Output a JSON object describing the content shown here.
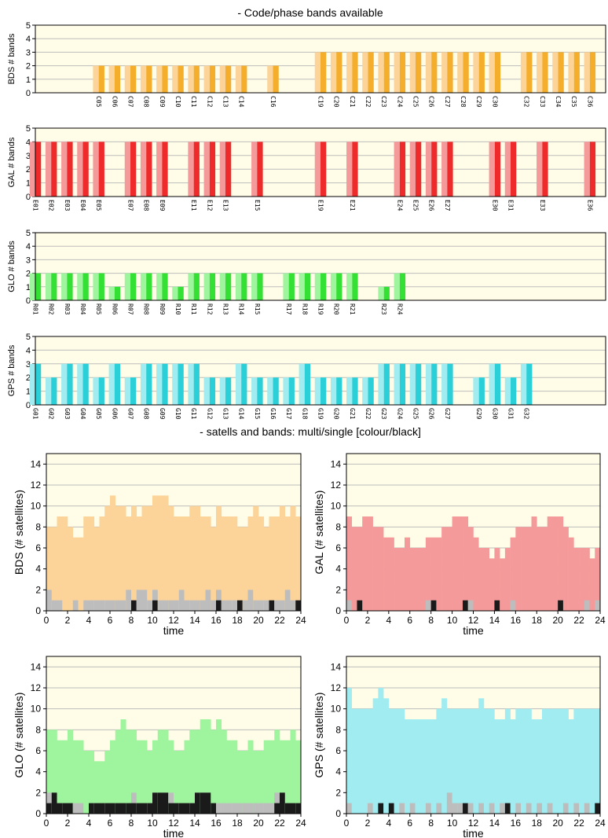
{
  "titles": {
    "top": "- Code/phase bands available",
    "bottom": "- satells and bands: multi/single [colour/black]"
  },
  "chart_data": [
    {
      "type": "bar",
      "ylabel": "BDS # bands",
      "ylim": [
        0,
        5
      ],
      "yticks": [
        0,
        1,
        2,
        3,
        4,
        5
      ],
      "color_light": "#fcd49a",
      "color_dark": "#f5ae2c",
      "slots": 36,
      "categories": [
        "C05",
        "C06",
        "C07",
        "C08",
        "C09",
        "C10",
        "C11",
        "C12",
        "C13",
        "C14",
        "C16",
        "C19",
        "C20",
        "C21",
        "C22",
        "C23",
        "C24",
        "C25",
        "C26",
        "C27",
        "C28",
        "C29",
        "C30",
        "C32",
        "C33",
        "C34",
        "C35",
        "C36"
      ],
      "values": [
        2,
        2,
        2,
        2,
        2,
        2,
        2,
        2,
        2,
        2,
        2,
        3,
        3,
        3,
        3,
        3,
        3,
        3,
        3,
        3,
        3,
        3,
        3,
        3,
        3,
        3,
        3,
        3
      ]
    },
    {
      "type": "bar",
      "ylabel": "GAL # bands",
      "ylim": [
        0,
        5
      ],
      "yticks": [
        0,
        1,
        2,
        3,
        4,
        5
      ],
      "color_light": "#f59a9a",
      "color_dark": "#ef2a2a",
      "slots": 36,
      "categories": [
        "E01",
        "E02",
        "E03",
        "E04",
        "E05",
        "E07",
        "E08",
        "E09",
        "E11",
        "E12",
        "E13",
        "E15",
        "E19",
        "E21",
        "E24",
        "E25",
        "E26",
        "E27",
        "E30",
        "E31",
        "E33",
        "E36"
      ],
      "values": [
        4,
        4,
        4,
        4,
        4,
        4,
        4,
        4,
        4,
        4,
        4,
        4,
        4,
        4,
        4,
        4,
        4,
        4,
        4,
        4,
        4,
        4
      ]
    },
    {
      "type": "bar",
      "ylabel": "GLO # bands",
      "ylim": [
        0,
        5
      ],
      "yticks": [
        0,
        1,
        2,
        3,
        4,
        5
      ],
      "color_light": "#9ef59e",
      "color_dark": "#33e033",
      "slots": 36,
      "categories": [
        "R01",
        "R02",
        "R03",
        "R04",
        "R05",
        "R06",
        "R07",
        "R08",
        "R09",
        "R10",
        "R11",
        "R12",
        "R13",
        "R14",
        "R15",
        "R17",
        "R18",
        "R19",
        "R20",
        "R21",
        "R23",
        "R24"
      ],
      "values": [
        2,
        2,
        2,
        2,
        2,
        1,
        2,
        2,
        2,
        1,
        2,
        2,
        2,
        2,
        2,
        2,
        2,
        2,
        2,
        2,
        1,
        2
      ]
    },
    {
      "type": "bar",
      "ylabel": "GPS # bands",
      "ylim": [
        0,
        5
      ],
      "yticks": [
        0,
        1,
        2,
        3,
        4,
        5
      ],
      "color_light": "#a0ecf0",
      "color_dark": "#2acfd8",
      "slots": 36,
      "categories": [
        "G01",
        "G02",
        "G03",
        "G04",
        "G05",
        "G06",
        "G07",
        "G08",
        "G09",
        "G10",
        "G11",
        "G12",
        "G13",
        "G14",
        "G15",
        "G16",
        "G17",
        "G18",
        "G19",
        "G20",
        "G21",
        "G22",
        "G23",
        "G24",
        "G25",
        "G26",
        "G27",
        "G29",
        "G30",
        "G31",
        "G32"
      ],
      "values": [
        3,
        2,
        3,
        3,
        2,
        3,
        2,
        3,
        3,
        3,
        3,
        2,
        2,
        3,
        2,
        2,
        2,
        3,
        2,
        2,
        2,
        2,
        3,
        3,
        3,
        3,
        3,
        2,
        3,
        2,
        3
      ]
    },
    {
      "type": "area",
      "ylabel": "BDS (# satellites)",
      "xlabel": "time",
      "xlim": [
        0,
        24
      ],
      "ylim": [
        0,
        15
      ],
      "xticks": [
        0,
        2,
        4,
        6,
        8,
        10,
        12,
        14,
        16,
        18,
        20,
        22,
        24
      ],
      "yticks": [
        0,
        2,
        4,
        6,
        8,
        10,
        12,
        14
      ],
      "fill_color": "#fcd49a",
      "x": [
        0,
        0.5,
        1,
        1.5,
        2,
        2.5,
        3,
        3.5,
        4,
        4.5,
        5,
        5.5,
        6,
        6.5,
        7,
        7.5,
        8,
        8.5,
        9,
        9.5,
        10,
        10.5,
        11,
        11.5,
        12,
        12.5,
        13,
        13.5,
        14,
        14.5,
        15,
        15.5,
        16,
        16.5,
        17,
        17.5,
        18,
        18.5,
        19,
        19.5,
        20,
        20.5,
        21,
        21.5,
        22,
        22.5,
        23,
        23.5
      ],
      "total": [
        8,
        8,
        9,
        9,
        8,
        7,
        7,
        9,
        9,
        8,
        9,
        10,
        11,
        10,
        10,
        9,
        10,
        9,
        10,
        10,
        11,
        11,
        11,
        10,
        9,
        9,
        9,
        10,
        10,
        9,
        9,
        8,
        10,
        9,
        9,
        9,
        8,
        8,
        9,
        10,
        9,
        8,
        9,
        9,
        10,
        9,
        10,
        9
      ],
      "single": [
        2,
        1,
        1,
        0,
        0,
        1,
        0,
        1,
        1,
        1,
        1,
        1,
        1,
        1,
        1,
        2,
        1,
        2,
        2,
        1,
        2,
        1,
        1,
        1,
        1,
        2,
        1,
        1,
        1,
        1,
        2,
        1,
        2,
        1,
        1,
        1,
        1,
        1,
        2,
        1,
        1,
        1,
        1,
        1,
        1,
        2,
        1,
        1
      ],
      "black": [
        0,
        0,
        0,
        0,
        0,
        0,
        0,
        0,
        0,
        0,
        0,
        0,
        0,
        0,
        0,
        0,
        1,
        0,
        0,
        0,
        1,
        0,
        0,
        0,
        0,
        0,
        0,
        0,
        0,
        0,
        0,
        0,
        1,
        0,
        0,
        0,
        1,
        0,
        0,
        0,
        0,
        0,
        1,
        0,
        0,
        0,
        0,
        1
      ]
    },
    {
      "type": "area",
      "ylabel": "GAL (# satellites)",
      "xlabel": "time",
      "xlim": [
        0,
        24
      ],
      "ylim": [
        0,
        15
      ],
      "xticks": [
        0,
        2,
        4,
        6,
        8,
        10,
        12,
        14,
        16,
        18,
        20,
        22,
        24
      ],
      "yticks": [
        0,
        2,
        4,
        6,
        8,
        10,
        12,
        14
      ],
      "fill_color": "#f59a9a",
      "x": [
        0,
        0.5,
        1,
        1.5,
        2,
        2.5,
        3,
        3.5,
        4,
        4.5,
        5,
        5.5,
        6,
        6.5,
        7,
        7.5,
        8,
        8.5,
        9,
        9.5,
        10,
        10.5,
        11,
        11.5,
        12,
        12.5,
        13,
        13.5,
        14,
        14.5,
        15,
        15.5,
        16,
        16.5,
        17,
        17.5,
        18,
        18.5,
        19,
        19.5,
        20,
        20.5,
        21,
        21.5,
        22,
        22.5,
        23,
        23.5
      ],
      "total": [
        9,
        8,
        8,
        9,
        9,
        8,
        8,
        7,
        7,
        6,
        6,
        7,
        6,
        6,
        6,
        7,
        7,
        7,
        8,
        8,
        9,
        9,
        9,
        8,
        7,
        6,
        6,
        5,
        6,
        5,
        6,
        7,
        8,
        8,
        8,
        9,
        8,
        8,
        9,
        9,
        9,
        8,
        7,
        6,
        6,
        6,
        5,
        6
      ],
      "single": [
        1,
        0,
        0,
        0,
        0,
        0,
        0,
        0,
        0,
        0,
        0,
        0,
        0,
        0,
        0,
        1,
        0,
        0,
        0,
        0,
        0,
        0,
        0,
        1,
        0,
        0,
        0,
        0,
        0,
        0,
        0,
        1,
        0,
        0,
        0,
        0,
        0,
        0,
        0,
        0,
        0,
        0,
        0,
        0,
        0,
        1,
        0,
        1
      ],
      "black": [
        0,
        0,
        1,
        0,
        0,
        0,
        0,
        0,
        0,
        0,
        0,
        0,
        0,
        0,
        0,
        0,
        1,
        0,
        0,
        0,
        0,
        0,
        1,
        0,
        0,
        0,
        0,
        0,
        1,
        0,
        0,
        0,
        0,
        0,
        0,
        0,
        0,
        0,
        0,
        0,
        1,
        0,
        0,
        0,
        0,
        0,
        0,
        0
      ]
    },
    {
      "type": "area",
      "ylabel": "GLO (# satellites)",
      "xlabel": "time",
      "xlim": [
        0,
        24
      ],
      "ylim": [
        0,
        15
      ],
      "xticks": [
        0,
        2,
        4,
        6,
        8,
        10,
        12,
        14,
        16,
        18,
        20,
        22,
        24
      ],
      "yticks": [
        0,
        2,
        4,
        6,
        8,
        10,
        12,
        14
      ],
      "fill_color": "#9ef59e",
      "x": [
        0,
        0.5,
        1,
        1.5,
        2,
        2.5,
        3,
        3.5,
        4,
        4.5,
        5,
        5.5,
        6,
        6.5,
        7,
        7.5,
        8,
        8.5,
        9,
        9.5,
        10,
        10.5,
        11,
        11.5,
        12,
        12.5,
        13,
        13.5,
        14,
        14.5,
        15,
        15.5,
        16,
        16.5,
        17,
        17.5,
        18,
        18.5,
        19,
        19.5,
        20,
        20.5,
        21,
        21.5,
        22,
        22.5,
        23,
        23.5
      ],
      "total": [
        8,
        8,
        7,
        7,
        8,
        7,
        7,
        6,
        6,
        5,
        5,
        6,
        7,
        8,
        9,
        8,
        8,
        7,
        7,
        6,
        7,
        8,
        8,
        7,
        6,
        6,
        7,
        8,
        8,
        9,
        9,
        8,
        9,
        8,
        7,
        7,
        6,
        6,
        7,
        6,
        6,
        7,
        7,
        8,
        7,
        7,
        8,
        7
      ],
      "single": [
        2,
        2,
        1,
        1,
        1,
        1,
        1,
        0,
        1,
        1,
        1,
        1,
        1,
        1,
        1,
        1,
        2,
        1,
        1,
        1,
        2,
        2,
        2,
        2,
        1,
        1,
        1,
        1,
        2,
        2,
        2,
        1,
        1,
        1,
        1,
        1,
        1,
        1,
        1,
        1,
        1,
        1,
        1,
        2,
        2,
        1,
        1,
        1
      ],
      "black": [
        1,
        2,
        1,
        1,
        1,
        0,
        0,
        0,
        1,
        1,
        1,
        1,
        1,
        1,
        1,
        1,
        1,
        1,
        1,
        1,
        2,
        2,
        2,
        1,
        1,
        1,
        1,
        1,
        2,
        2,
        2,
        1,
        0,
        0,
        0,
        0,
        0,
        0,
        0,
        0,
        0,
        0,
        0,
        1,
        2,
        1,
        1,
        1
      ]
    },
    {
      "type": "area",
      "ylabel": "GPS (# satellites)",
      "xlabel": "time",
      "xlim": [
        0,
        24
      ],
      "ylim": [
        0,
        15
      ],
      "xticks": [
        0,
        2,
        4,
        6,
        8,
        10,
        12,
        14,
        16,
        18,
        20,
        22,
        24
      ],
      "yticks": [
        0,
        2,
        4,
        6,
        8,
        10,
        12,
        14
      ],
      "fill_color": "#a0ecf0",
      "x": [
        0,
        0.5,
        1,
        1.5,
        2,
        2.5,
        3,
        3.5,
        4,
        4.5,
        5,
        5.5,
        6,
        6.5,
        7,
        7.5,
        8,
        8.5,
        9,
        9.5,
        10,
        10.5,
        11,
        11.5,
        12,
        12.5,
        13,
        13.5,
        14,
        14.5,
        15,
        15.5,
        16,
        16.5,
        17,
        17.5,
        18,
        18.5,
        19,
        19.5,
        20,
        20.5,
        21,
        21.5,
        22,
        22.5,
        23,
        23.5
      ],
      "total": [
        12,
        10,
        10,
        10,
        10,
        11,
        12,
        11,
        10,
        10,
        10,
        9,
        9,
        9,
        9,
        9,
        9,
        10,
        11,
        10,
        10,
        10,
        10,
        10,
        10,
        11,
        10,
        10,
        9,
        9,
        10,
        9,
        10,
        10,
        10,
        9,
        9,
        10,
        10,
        10,
        10,
        10,
        9,
        10,
        10,
        10,
        10,
        10
      ],
      "single": [
        1,
        0,
        0,
        0,
        1,
        0,
        1,
        0,
        1,
        0,
        1,
        0,
        1,
        0,
        0,
        1,
        0,
        1,
        0,
        2,
        1,
        1,
        0,
        1,
        0,
        1,
        0,
        1,
        0,
        1,
        1,
        0,
        1,
        0,
        1,
        0,
        1,
        0,
        1,
        0,
        0,
        1,
        0,
        1,
        0,
        1,
        0,
        1
      ],
      "black": [
        0,
        0,
        0,
        0,
        0,
        0,
        1,
        0,
        1,
        0,
        0,
        0,
        0,
        0,
        0,
        0,
        0,
        0,
        0,
        0,
        0,
        0,
        1,
        0,
        0,
        0,
        0,
        0,
        0,
        0,
        1,
        0,
        0,
        0,
        0,
        0,
        0,
        0,
        0,
        0,
        0,
        0,
        0,
        0,
        0,
        0,
        0,
        1
      ]
    }
  ]
}
